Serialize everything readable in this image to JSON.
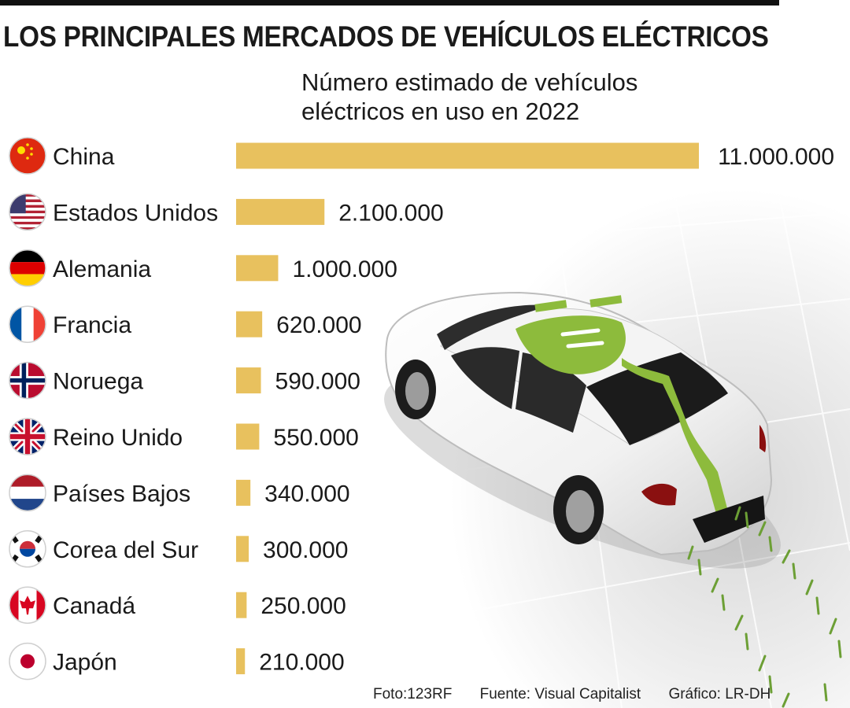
{
  "title": "LOS PRINCIPALES MERCADOS DE VEHÍCULOS ELÉCTRICOS",
  "subtitle": "Número estimado de vehículos eléctricos en uso en 2022",
  "colors": {
    "bar": "#e8c15e",
    "text": "#1a1a1a",
    "plug": "#8dbb3c"
  },
  "chart_data": {
    "type": "bar",
    "orientation": "horizontal",
    "categories": [
      "China",
      "Estados Unidos",
      "Alemania",
      "Francia",
      "Noruega",
      "Reino Unido",
      "Países Bajos",
      "Corea del Sur",
      "Canadá",
      "Japón"
    ],
    "values": [
      11000000,
      2100000,
      1000000,
      620000,
      590000,
      550000,
      340000,
      300000,
      250000,
      210000
    ],
    "value_labels": [
      "11.000.000",
      "2.100.000",
      "1.000.000",
      "620.000",
      "590.000",
      "550.000",
      "340.000",
      "300.000",
      "250.000",
      "210.000"
    ],
    "flags": [
      "china-flag-icon",
      "usa-flag-icon",
      "germany-flag-icon",
      "france-flag-icon",
      "norway-flag-icon",
      "uk-flag-icon",
      "netherlands-flag-icon",
      "south-korea-flag-icon",
      "canada-flag-icon",
      "japan-flag-icon"
    ],
    "grid": false,
    "legend": "none"
  },
  "credits": {
    "photo": "Foto:123RF",
    "source": "Fuente: Visual Capitalist",
    "graphic": "Gráfico: LR-DH"
  }
}
